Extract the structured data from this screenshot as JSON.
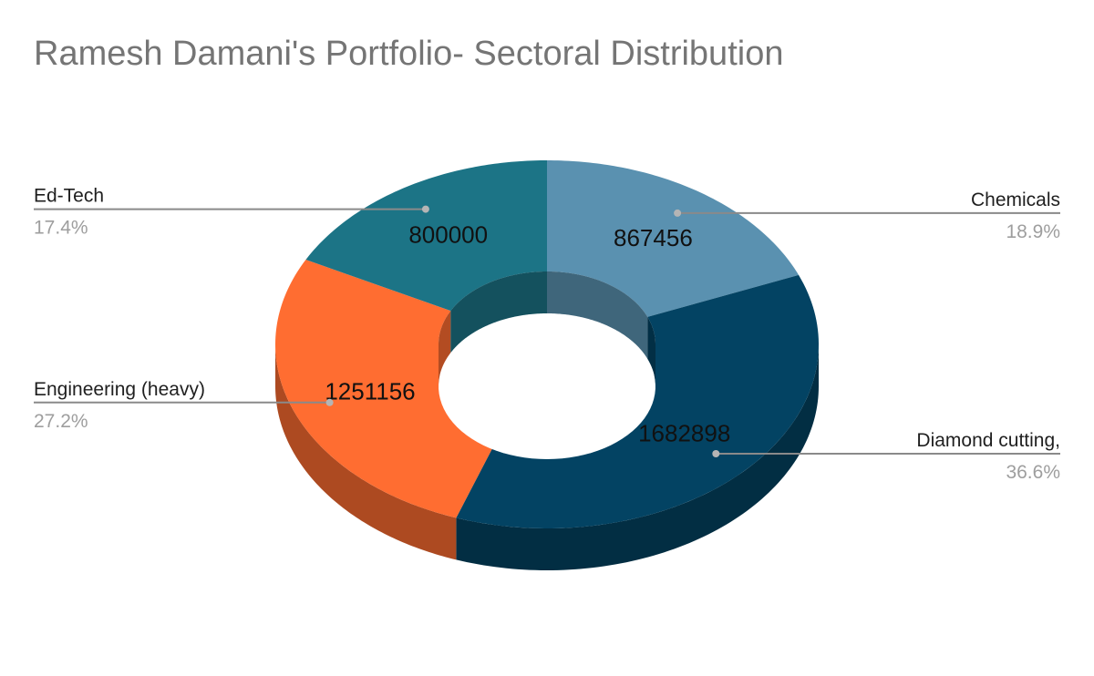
{
  "chart_data": {
    "type": "pie",
    "variant": "3d-donut",
    "title": "Ramesh Damani's Portfolio- Sectoral Distribution",
    "legend": "none",
    "slices": [
      {
        "label": "Chemicals",
        "value": 867456,
        "percent_label": "18.9%",
        "color": "#5a91b0"
      },
      {
        "label": "Diamond cutting,",
        "value": 1682898,
        "percent_label": "36.6%",
        "color": "#034363"
      },
      {
        "label": "Engineering (heavy)",
        "value": 1251156,
        "percent_label": "27.2%",
        "color": "#ff6d31"
      },
      {
        "label": "Ed-Tech",
        "value": 800000,
        "percent_label": "17.4%",
        "color": "#1c7486"
      }
    ]
  }
}
